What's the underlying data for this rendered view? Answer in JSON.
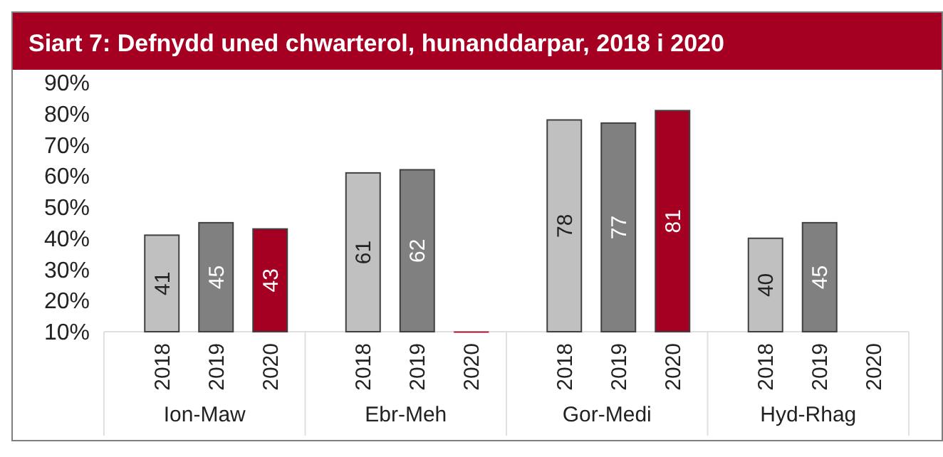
{
  "chart_data": {
    "type": "bar",
    "title": "Siart 7: Defnydd uned chwarterol, hunanddarpar, 2018 i 2020",
    "categories": [
      "Ion-Maw",
      "Ebr-Meh",
      "Gor-Medi",
      "Hyd-Rhag"
    ],
    "series": [
      {
        "name": "2018",
        "color": "#c0c0c0",
        "values": [
          41,
          61,
          78,
          40
        ],
        "value_labels": [
          "41",
          "61",
          "78",
          "40"
        ]
      },
      {
        "name": "2019",
        "color": "#808080",
        "values": [
          45,
          62,
          77,
          45
        ],
        "value_labels": [
          "45",
          "62",
          "77",
          "45"
        ]
      },
      {
        "name": "2020",
        "color": "#a50021",
        "values": [
          43,
          10,
          81,
          null
        ],
        "value_labels": [
          "43",
          null,
          "81",
          null
        ]
      }
    ],
    "ylim": [
      10,
      90
    ],
    "yticks": [
      {
        "value": 10,
        "label": "10%"
      },
      {
        "value": 20,
        "label": "20%"
      },
      {
        "value": 30,
        "label": "30%"
      },
      {
        "value": 40,
        "label": "40%"
      },
      {
        "value": 50,
        "label": "50%"
      },
      {
        "value": 60,
        "label": "60%"
      },
      {
        "value": 70,
        "label": "70%"
      },
      {
        "value": 80,
        "label": "80%"
      },
      {
        "value": 90,
        "label": "90%"
      }
    ],
    "grid": false
  }
}
